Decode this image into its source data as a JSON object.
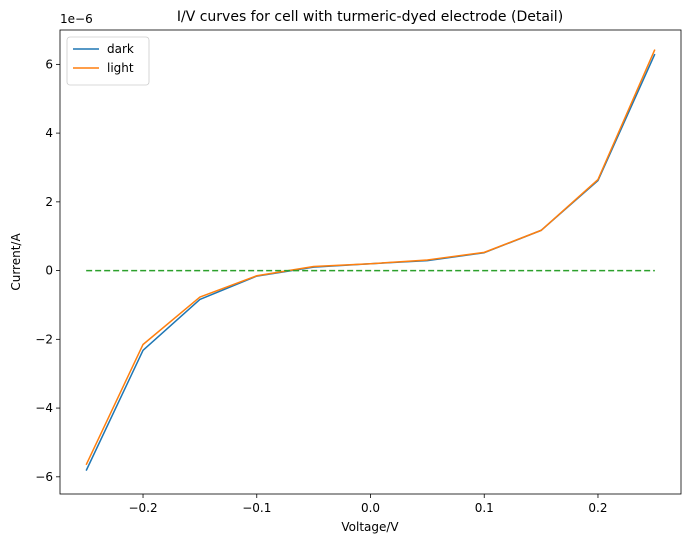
{
  "chart_data": {
    "type": "line",
    "title": "I/V curves for cell with turmeric-dyed electrode (Detail)",
    "xlabel": "Voltage/V",
    "ylabel": "Current/A",
    "y_offset_label": "1e−6",
    "xlim": [
      -0.273,
      0.273
    ],
    "ylim": [
      -6.5,
      7.0
    ],
    "x_ticks": [
      -0.2,
      -0.1,
      0.0,
      0.1,
      0.2
    ],
    "x_tick_labels": [
      "−0.2",
      "−0.1",
      "0.0",
      "0.1",
      "0.2"
    ],
    "y_ticks": [
      -6,
      -4,
      -2,
      0,
      2,
      4,
      6
    ],
    "y_tick_labels": [
      "−6",
      "−4",
      "−2",
      "0",
      "2",
      "4",
      "6"
    ],
    "y_scale": 1e-06,
    "grid": false,
    "legend_position": "top-left",
    "x": [
      -0.25,
      -0.2,
      -0.15,
      -0.1,
      -0.05,
      0.0,
      0.05,
      0.1,
      0.15,
      0.2,
      0.25
    ],
    "series": [
      {
        "name": "dark",
        "color": "#1f77b4",
        "style": "solid",
        "values": [
          -5.82,
          -2.32,
          -0.84,
          -0.16,
          0.1,
          0.2,
          0.29,
          0.52,
          1.17,
          2.62,
          6.3
        ]
      },
      {
        "name": "light",
        "color": "#ff7f0e",
        "style": "solid",
        "values": [
          -5.65,
          -2.15,
          -0.77,
          -0.15,
          0.12,
          0.2,
          0.31,
          0.53,
          1.17,
          2.65,
          6.43
        ]
      },
      {
        "name": "",
        "color": "#2ca02c",
        "style": "dashed",
        "x": [
          -0.25,
          0.25
        ],
        "values": [
          0,
          0
        ]
      }
    ]
  }
}
